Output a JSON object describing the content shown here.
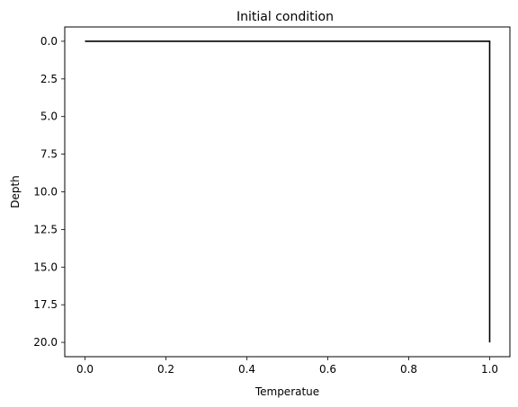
{
  "chart_data": {
    "type": "line",
    "title": "Initial condition",
    "xlabel": "Temperatue",
    "ylabel": "Depth",
    "xlim": [
      -0.05,
      1.05
    ],
    "ylim": [
      20.95,
      -0.95
    ],
    "y_inverted": true,
    "grid": false,
    "xticks": [
      0.0,
      0.2,
      0.4,
      0.6,
      0.8,
      1.0
    ],
    "xtick_labels": [
      "0.0",
      "0.2",
      "0.4",
      "0.6",
      "0.8",
      "1.0"
    ],
    "yticks": [
      0.0,
      2.5,
      5.0,
      7.5,
      10.0,
      12.5,
      15.0,
      17.5,
      20.0
    ],
    "ytick_labels": [
      "0.0",
      "2.5",
      "5.0",
      "7.5",
      "10.0",
      "12.5",
      "15.0",
      "17.5",
      "20.0"
    ],
    "line_color": "#000000",
    "series": [
      {
        "x": [
          0.0,
          1.0,
          1.0
        ],
        "y": [
          0.0,
          0.0,
          20.0
        ]
      }
    ]
  }
}
